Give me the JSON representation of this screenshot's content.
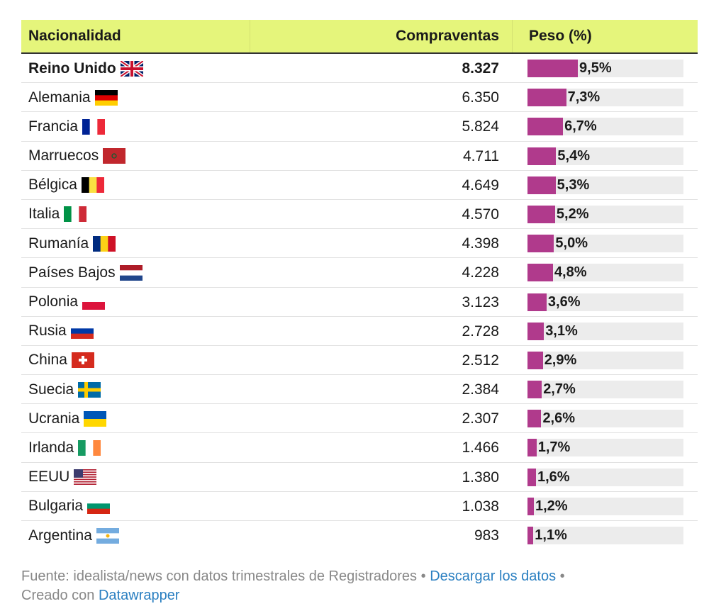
{
  "table": {
    "headers": {
      "nationality": "Nacionalidad",
      "sales": "Compraventas",
      "share": "Peso (%)"
    },
    "rows": [
      {
        "name": "Reino Unido",
        "flag_icon": "uk-flag-icon",
        "sales": "8.327",
        "share": "9,5%",
        "share_value": 9.5,
        "bold": true
      },
      {
        "name": "Alemania",
        "flag_icon": "germany-flag-icon",
        "sales": "6.350",
        "share": "7,3%",
        "share_value": 7.3
      },
      {
        "name": "Francia",
        "flag_icon": "france-flag-icon",
        "sales": "5.824",
        "share": "6,7%",
        "share_value": 6.7
      },
      {
        "name": "Marruecos",
        "flag_icon": "morocco-flag-icon",
        "sales": "4.711",
        "share": "5,4%",
        "share_value": 5.4
      },
      {
        "name": "Bélgica",
        "flag_icon": "belgium-flag-icon",
        "sales": "4.649",
        "share": "5,3%",
        "share_value": 5.3
      },
      {
        "name": "Italia",
        "flag_icon": "italy-flag-icon",
        "sales": "4.570",
        "share": "5,2%",
        "share_value": 5.2
      },
      {
        "name": "Rumanía",
        "flag_icon": "romania-flag-icon",
        "sales": "4.398",
        "share": "5,0%",
        "share_value": 5.0
      },
      {
        "name": "Países Bajos",
        "flag_icon": "netherlands-flag-icon",
        "sales": "4.228",
        "share": "4,8%",
        "share_value": 4.8
      },
      {
        "name": "Polonia",
        "flag_icon": "poland-flag-icon",
        "sales": "3.123",
        "share": "3,6%",
        "share_value": 3.6
      },
      {
        "name": "Rusia",
        "flag_icon": "russia-flag-icon",
        "sales": "2.728",
        "share": "3,1%",
        "share_value": 3.1
      },
      {
        "name": "China",
        "flag_icon": "switzerland-flag-icon",
        "sales": "2.512",
        "share": "2,9%",
        "share_value": 2.9
      },
      {
        "name": "Suecia",
        "flag_icon": "sweden-flag-icon",
        "sales": "2.384",
        "share": "2,7%",
        "share_value": 2.7
      },
      {
        "name": "Ucrania",
        "flag_icon": "ukraine-flag-icon",
        "sales": "2.307",
        "share": "2,6%",
        "share_value": 2.6
      },
      {
        "name": "Irlanda",
        "flag_icon": "ireland-flag-icon",
        "sales": "1.466",
        "share": "1,7%",
        "share_value": 1.7
      },
      {
        "name": "EEUU",
        "flag_icon": "usa-flag-icon",
        "sales": "1.380",
        "share": "1,6%",
        "share_value": 1.6
      },
      {
        "name": "Bulgaria",
        "flag_icon": "bulgaria-flag-icon",
        "sales": "1.038",
        "share": "1,2%",
        "share_value": 1.2
      },
      {
        "name": "Argentina",
        "flag_icon": "argentina-flag-icon",
        "sales": "983",
        "share": "1,1%",
        "share_value": 1.1
      }
    ],
    "bar_color": "#b03a8c",
    "bar_track_color": "#ececec",
    "header_bg": "#e5f57b"
  },
  "footer": {
    "source_text": "Fuente: idealista/news con datos trimestrales de Registradores",
    "separator": "•",
    "download_link": "Descargar los datos",
    "created_with": "Creado con",
    "tool_link": "Datawrapper",
    "link_color": "#2a7fc1"
  }
}
